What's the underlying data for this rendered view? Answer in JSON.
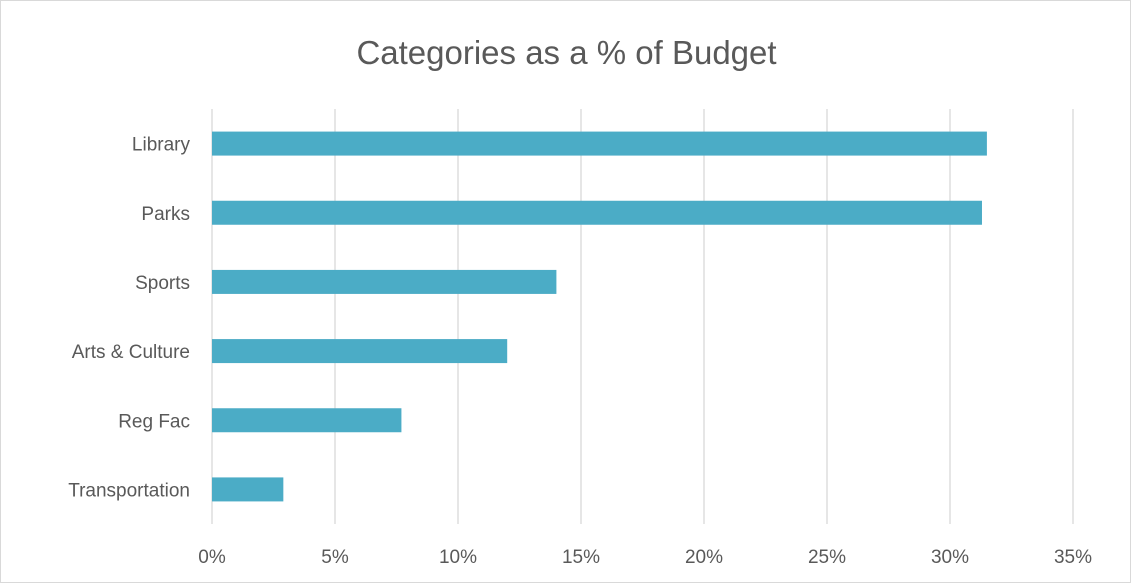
{
  "chart_data": {
    "type": "bar",
    "orientation": "horizontal",
    "title": "Categories as a % of Budget",
    "xlabel": "",
    "ylabel": "",
    "categories": [
      "Library",
      "Parks",
      "Sports",
      "Arts & Culture",
      "Reg Fac",
      "Transportation"
    ],
    "values": [
      31.5,
      31.3,
      14.0,
      12.0,
      7.7,
      2.9
    ],
    "xlim": [
      0,
      35
    ],
    "x_ticks": [
      "0%",
      "5%",
      "10%",
      "15%",
      "20%",
      "25%",
      "30%",
      "35%"
    ],
    "x_tick_values": [
      0,
      5,
      10,
      15,
      20,
      25,
      30,
      35
    ],
    "grid": "vertical",
    "legend": "none",
    "bar_color": "#4bacc6",
    "grid_color": "#d9d9d9",
    "text_color": "#595959"
  }
}
